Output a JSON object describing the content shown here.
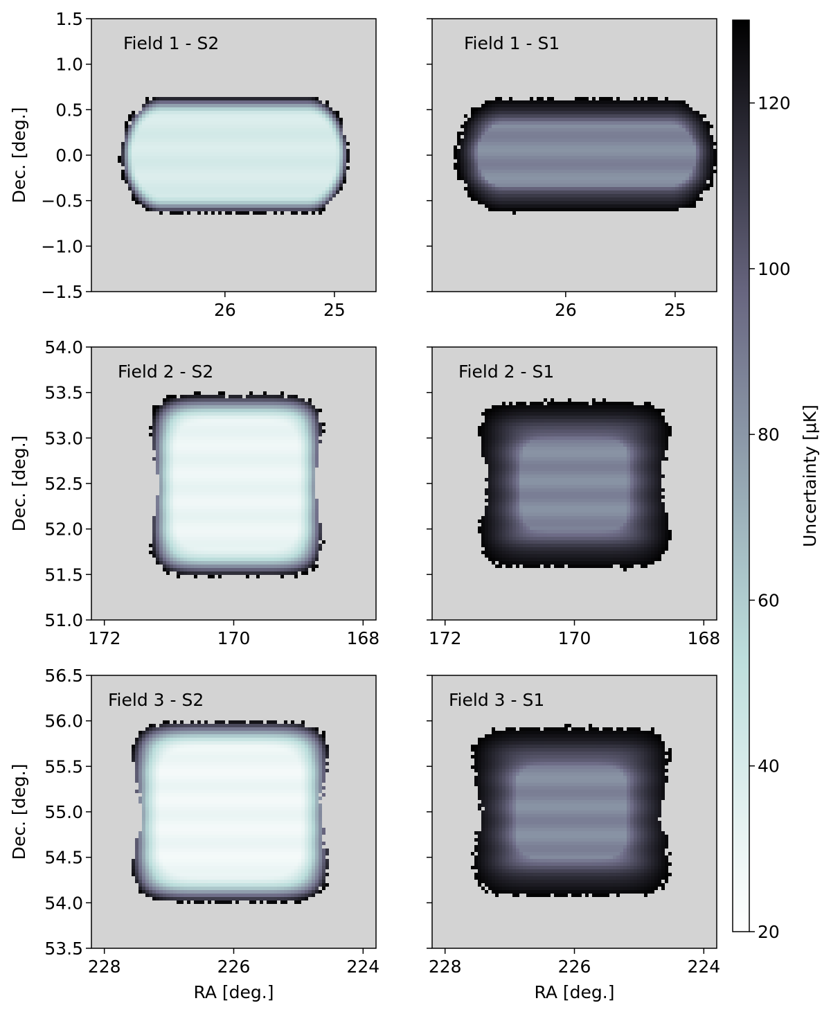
{
  "chart_data": {
    "type": "heatmap",
    "colorbar": {
      "label": "Uncertainty [μK]",
      "range": [
        20,
        130
      ],
      "ticks": [
        20,
        40,
        60,
        80,
        100,
        120
      ],
      "colormap": "bone_r",
      "colors": [
        "#ffffff",
        "#b9dcda",
        "#6f6d88",
        "#000000"
      ]
    },
    "background_color": "#d3d3d3",
    "panels": [
      {
        "title": "Field 1 - S2",
        "survey": "S2",
        "xlabel": "",
        "ylabel": "Dec. [deg.]",
        "x_range": [
          27.22,
          24.62
        ],
        "x_ticks": [
          26,
          25
        ],
        "y_range": [
          -1.5,
          1.5
        ],
        "y_ticks": [
          -1.5,
          -1.0,
          -0.5,
          0.0,
          0.5,
          1.0,
          1.5
        ],
        "y_tick_labels": [
          "−1.5",
          "−1.0",
          "−0.5",
          "0.0",
          "0.5",
          "1.0",
          "1.5"
        ],
        "shape": "stadium",
        "footprint": {
          "ra": [
            24.87,
            26.95
          ],
          "dec": [
            -0.64,
            0.64
          ]
        },
        "min_uncertainty": 40,
        "max_uncertainty": 130
      },
      {
        "title": "Field 1 - S1",
        "survey": "S1",
        "xlabel": "",
        "ylabel": "",
        "x_range": [
          27.22,
          24.62
        ],
        "x_ticks": [
          26,
          25
        ],
        "y_range": [
          -1.5,
          1.5
        ],
        "y_ticks": [
          -1.5,
          -1.0,
          -0.5,
          0.0,
          0.5,
          1.0,
          1.5
        ],
        "shape": "stadium",
        "footprint": {
          "ra": [
            24.62,
            27.0
          ],
          "dec": [
            -0.62,
            0.62
          ]
        },
        "min_uncertainty": 85,
        "max_uncertainty": 130
      },
      {
        "title": "Field 2 - S2",
        "survey": "S2",
        "xlabel": "",
        "ylabel": "Dec. [deg.]",
        "x_range": [
          172.2,
          167.8
        ],
        "x_ticks": [
          172,
          170,
          168
        ],
        "y_range": [
          51.0,
          54.0
        ],
        "y_ticks": [
          51.0,
          51.5,
          52.0,
          52.5,
          53.0,
          53.5,
          54.0
        ],
        "y_tick_labels": [
          "51.0",
          "51.5",
          "52.0",
          "52.5",
          "53.0",
          "53.5",
          "54.0"
        ],
        "shape": "rounded-square",
        "footprint": {
          "ra": [
            168.6,
            171.3
          ],
          "dec": [
            51.48,
            53.48
          ]
        },
        "min_uncertainty": 30,
        "max_uncertainty": 130
      },
      {
        "title": "Field 2 - S1",
        "survey": "S1",
        "xlabel": "",
        "ylabel": "",
        "x_range": [
          172.2,
          167.8
        ],
        "x_ticks": [
          172,
          170,
          168
        ],
        "y_range": [
          51.0,
          54.0
        ],
        "y_ticks": [
          51.0,
          51.5,
          52.0,
          52.5,
          53.0,
          53.5,
          54.0
        ],
        "shape": "rounded-square",
        "footprint": {
          "ra": [
            168.5,
            171.5
          ],
          "dec": [
            51.57,
            53.4
          ]
        },
        "min_uncertainty": 85,
        "max_uncertainty": 130
      },
      {
        "title": "Field 3 - S2",
        "survey": "S2",
        "xlabel": "RA [deg.]",
        "ylabel": "Dec. [deg.]",
        "x_range": [
          228.2,
          223.8
        ],
        "x_ticks": [
          228,
          226,
          224
        ],
        "y_range": [
          53.5,
          56.5
        ],
        "y_ticks": [
          53.5,
          54.0,
          54.5,
          55.0,
          55.5,
          56.0,
          56.5
        ],
        "y_tick_labels": [
          "53.5",
          "54.0",
          "54.5",
          "55.0",
          "55.5",
          "56.0",
          "56.5"
        ],
        "shape": "rounded-square",
        "footprint": {
          "ra": [
            224.5,
            227.6
          ],
          "dec": [
            54.0,
            56.0
          ]
        },
        "min_uncertainty": 28,
        "max_uncertainty": 130
      },
      {
        "title": "Field 3 - S1",
        "survey": "S1",
        "xlabel": "RA [deg.]",
        "ylabel": "",
        "x_range": [
          228.2,
          223.8
        ],
        "x_ticks": [
          228,
          226,
          224
        ],
        "y_range": [
          53.5,
          56.5
        ],
        "y_ticks": [
          53.5,
          54.0,
          54.5,
          55.0,
          55.5,
          56.0,
          56.5
        ],
        "shape": "rounded-square",
        "footprint": {
          "ra": [
            224.5,
            227.6
          ],
          "dec": [
            54.07,
            55.93
          ]
        },
        "min_uncertainty": 85,
        "max_uncertainty": 130
      }
    ]
  }
}
